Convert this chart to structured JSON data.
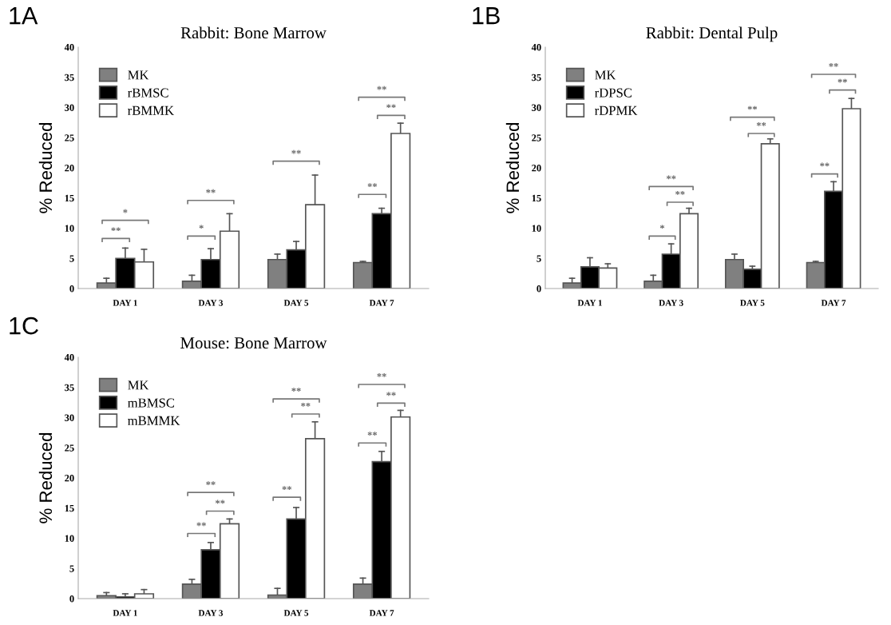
{
  "chart_data": [
    {
      "type": "bar",
      "title": "Rabbit: Bone Marrow",
      "ylabel": "% Reduced",
      "categories": [
        "DAY 1",
        "DAY 3",
        "DAY 5",
        "DAY 7"
      ],
      "ylim": [
        0,
        40
      ],
      "yticks": [
        0,
        5,
        10,
        15,
        20,
        25,
        30,
        35,
        40
      ],
      "legend": "top left",
      "grid": false,
      "series": [
        {
          "name": "MK",
          "color": "#808080",
          "values": [
            0.9,
            1.2,
            4.8,
            4.3
          ],
          "errors": [
            [
              0.9,
              1.7
            ],
            [
              1.2,
              2.2
            ],
            [
              4.8,
              5.7
            ],
            [
              4.3,
              4.5
            ]
          ]
        },
        {
          "name": "rBMSC",
          "color": "#000000",
          "values": [
            5.0,
            4.8,
            6.4,
            12.4
          ],
          "errors": [
            [
              5.0,
              6.7
            ],
            [
              4.8,
              6.6
            ],
            [
              6.4,
              7.8
            ],
            [
              12.4,
              13.3
            ]
          ]
        },
        {
          "name": "rBMMK",
          "color": "#ffffff",
          "values": [
            4.4,
            9.5,
            13.9,
            25.7
          ],
          "errors": [
            [
              4.4,
              6.5
            ],
            [
              9.5,
              12.4
            ],
            [
              13.9,
              18.8
            ],
            [
              25.7,
              27.4
            ]
          ]
        }
      ],
      "annotations": [
        "1A",
        "**",
        "*",
        "*",
        "**",
        "**",
        "**",
        "**",
        "**"
      ]
    },
    {
      "type": "bar",
      "title": "Rabbit: Dental Pulp",
      "ylabel": "% Reduced",
      "categories": [
        "DAY 1",
        "DAY 3",
        "DAY 5",
        "DAY 7"
      ],
      "ylim": [
        0,
        40
      ],
      "yticks": [
        0,
        5,
        10,
        15,
        20,
        25,
        30,
        35,
        40
      ],
      "legend": "top left",
      "grid": false,
      "series": [
        {
          "name": "MK",
          "color": "#808080",
          "values": [
            0.9,
            1.2,
            4.8,
            4.3
          ],
          "errors": [
            [
              0.9,
              1.7
            ],
            [
              1.2,
              2.2
            ],
            [
              4.8,
              5.7
            ],
            [
              4.3,
              4.5
            ]
          ]
        },
        {
          "name": "rDPSC",
          "color": "#000000",
          "values": [
            3.6,
            5.7,
            3.2,
            16.1
          ],
          "errors": [
            [
              3.6,
              5.1
            ],
            [
              5.7,
              7.4
            ],
            [
              3.2,
              3.7
            ],
            [
              16.1,
              17.7
            ]
          ]
        },
        {
          "name": "rDPMK",
          "color": "#ffffff",
          "values": [
            3.4,
            12.4,
            24.0,
            29.8
          ],
          "errors": [
            [
              3.4,
              4.1
            ],
            [
              12.4,
              13.3
            ],
            [
              24.0,
              24.8
            ],
            [
              29.8,
              31.5
            ]
          ]
        }
      ],
      "annotations": [
        "1B",
        "*",
        "**",
        "**",
        "**",
        "**",
        "**",
        "**",
        "**"
      ]
    },
    {
      "type": "bar",
      "title": "Mouse: Bone Marrow",
      "ylabel": "% Reduced",
      "categories": [
        "DAY 1",
        "DAY 3",
        "DAY 5",
        "DAY 7"
      ],
      "ylim": [
        0,
        40
      ],
      "yticks": [
        0,
        5,
        10,
        15,
        20,
        25,
        30,
        35,
        40
      ],
      "legend": "top left",
      "grid": false,
      "series": [
        {
          "name": "MK",
          "color": "#808080",
          "values": [
            0.5,
            2.4,
            0.6,
            2.4
          ],
          "errors": [
            [
              0.5,
              1.0
            ],
            [
              2.4,
              3.2
            ],
            [
              0.6,
              1.7
            ],
            [
              2.4,
              3.4
            ]
          ]
        },
        {
          "name": "mBMSC",
          "color": "#000000",
          "values": [
            0.3,
            8.1,
            13.2,
            22.7
          ],
          "errors": [
            [
              0.3,
              0.8
            ],
            [
              8.1,
              9.3
            ],
            [
              13.2,
              15.1
            ],
            [
              22.7,
              24.4
            ]
          ]
        },
        {
          "name": "mBMMK",
          "color": "#ffffff",
          "values": [
            0.8,
            12.4,
            26.5,
            30.1
          ],
          "errors": [
            [
              0.8,
              1.5
            ],
            [
              12.4,
              13.2
            ],
            [
              26.5,
              29.3
            ],
            [
              30.1,
              31.2
            ]
          ]
        }
      ],
      "annotations": [
        "1C",
        "**",
        "**",
        "**",
        "**",
        "**",
        "**",
        "**",
        "**",
        "**"
      ]
    }
  ]
}
